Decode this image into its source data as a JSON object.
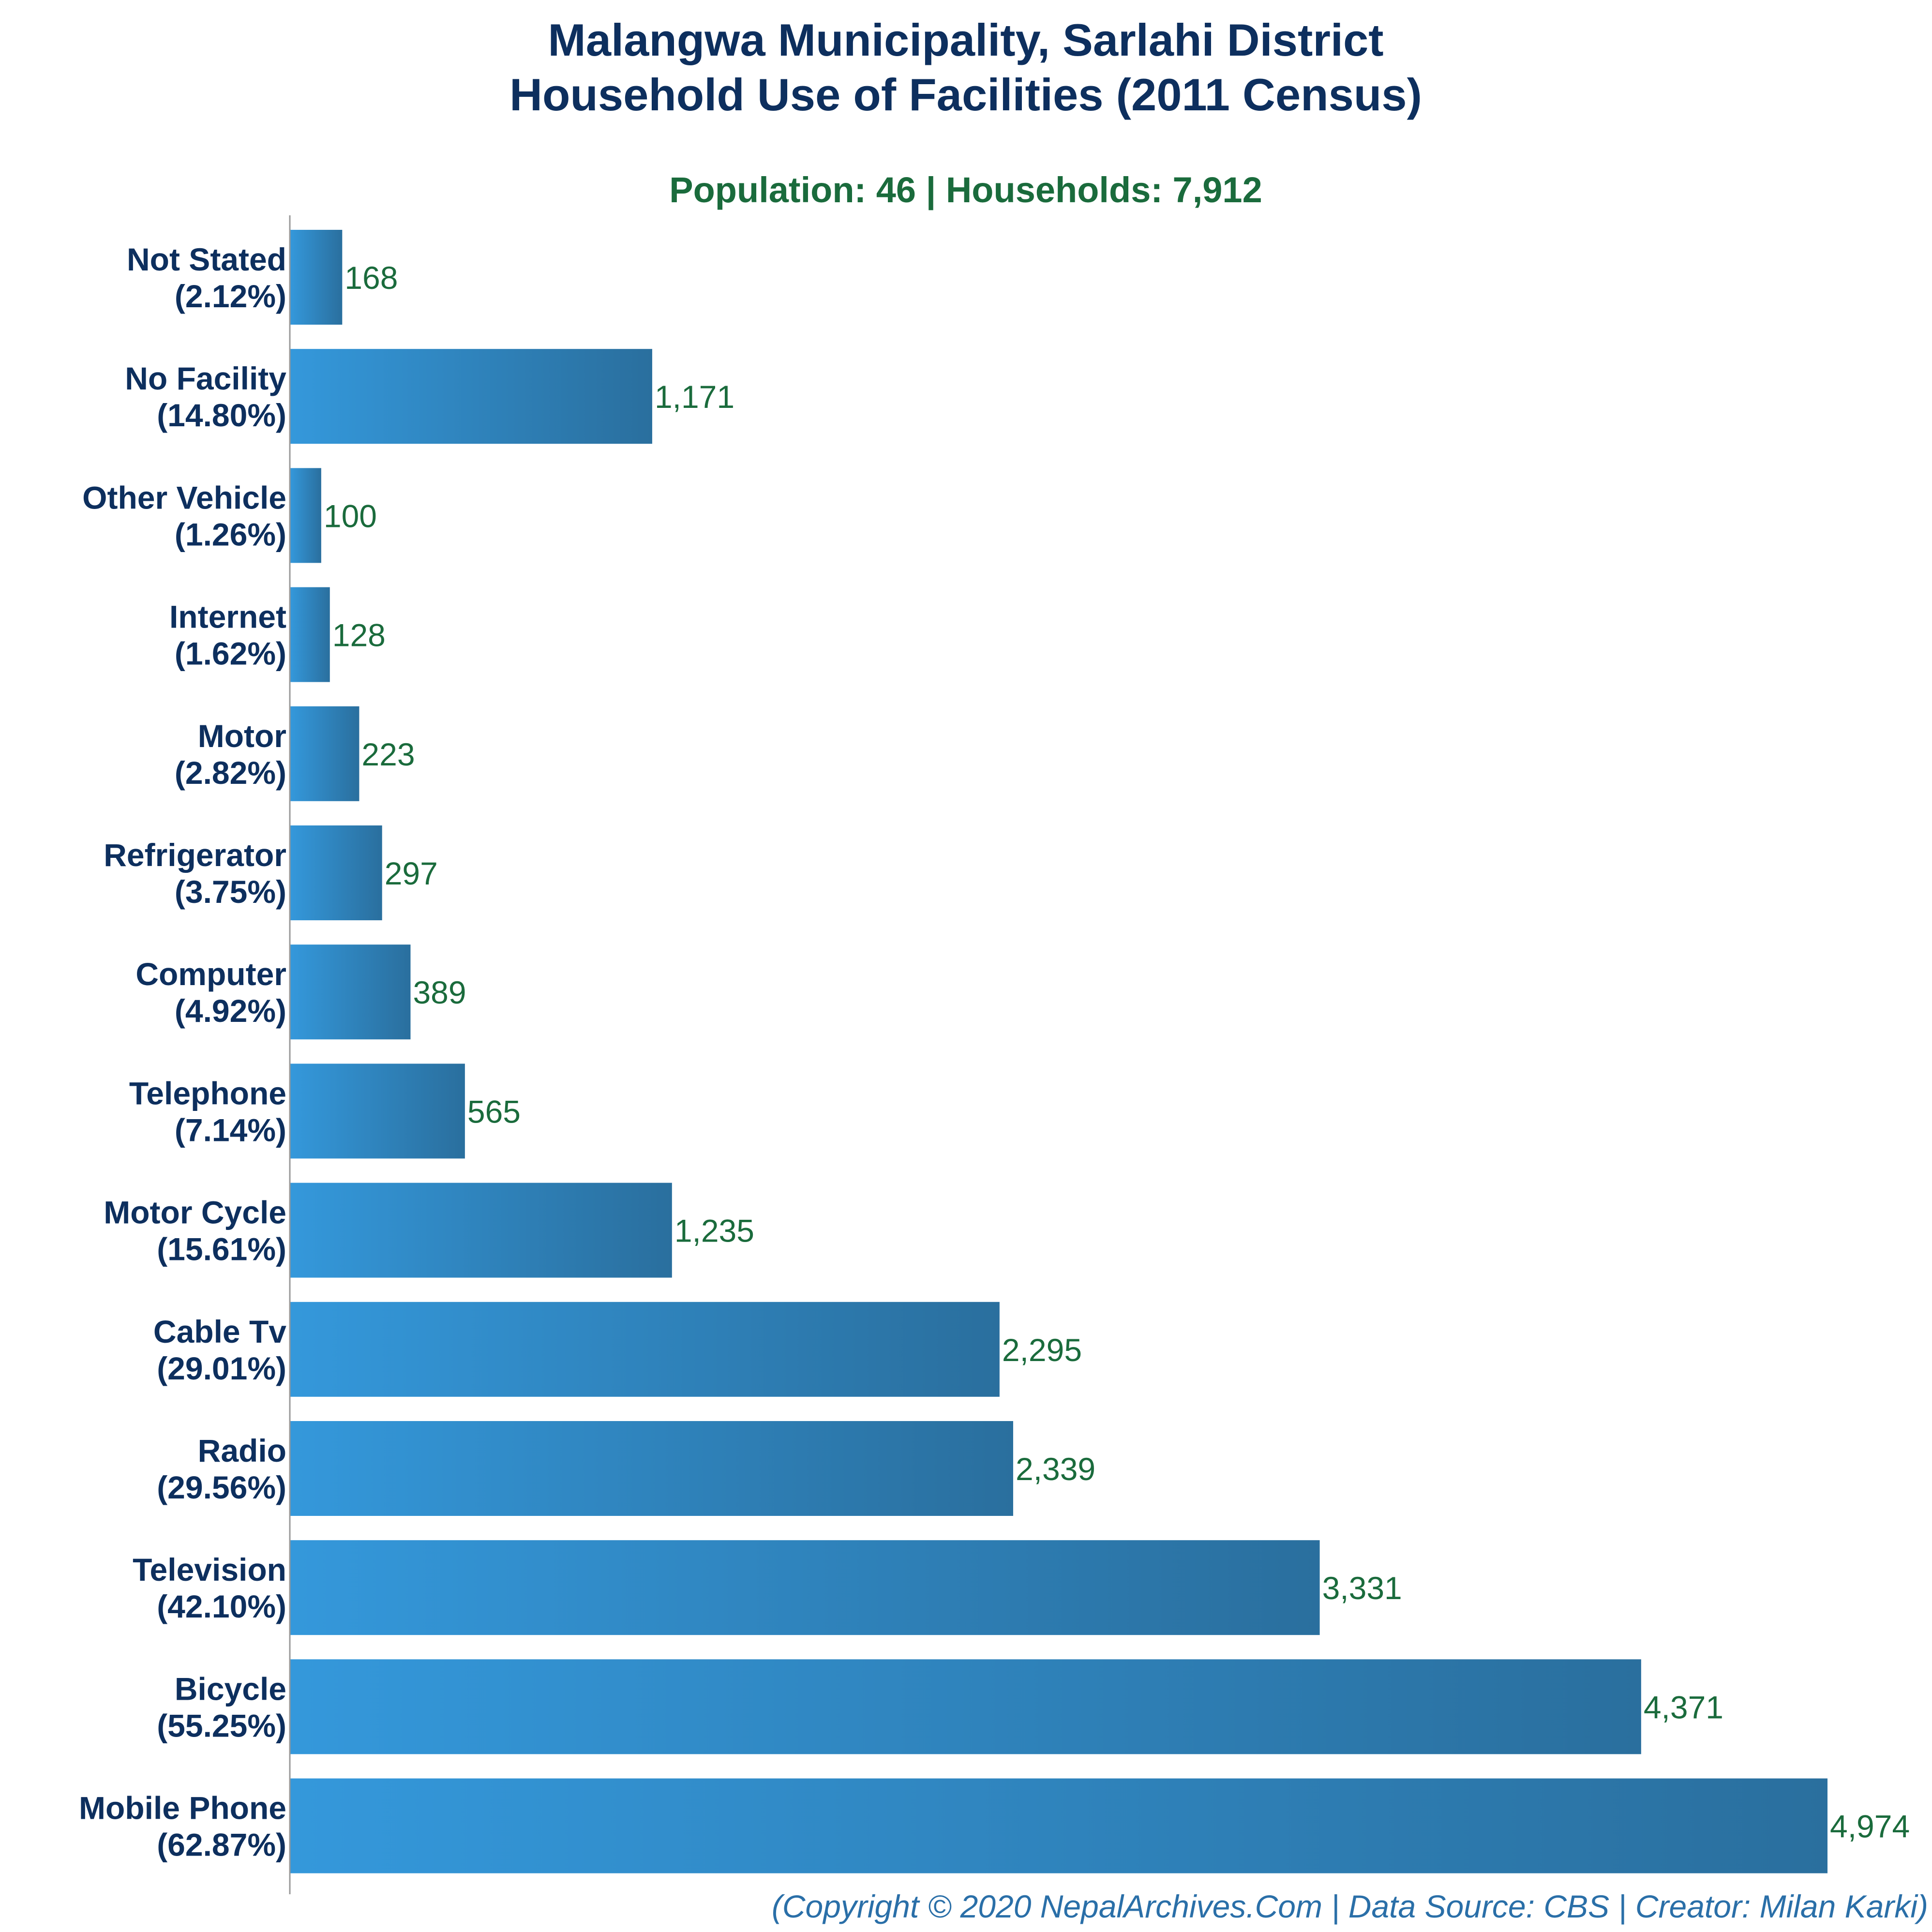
{
  "chart_data": {
    "type": "bar",
    "orientation": "horizontal",
    "title_lines": [
      "Malangwa Municipality, Sarlahi District",
      "Household Use of Facilities (2011 Census)"
    ],
    "subtitle": "Population: 46 | Households: 7,912",
    "categories": [
      "Not Stated",
      "No Facility",
      "Other Vehicle",
      "Internet",
      "Motor",
      "Refrigerator",
      "Computer",
      "Telephone",
      "Motor Cycle",
      "Cable Tv",
      "Radio",
      "Television",
      "Bicycle",
      "Mobile Phone"
    ],
    "percent_labels": [
      "(2.12%)",
      "(14.80%)",
      "(1.26%)",
      "(1.62%)",
      "(2.82%)",
      "(3.75%)",
      "(4.92%)",
      "(7.14%)",
      "(15.61%)",
      "(29.01%)",
      "(29.56%)",
      "(42.10%)",
      "(55.25%)",
      "(62.87%)"
    ],
    "values": [
      168,
      1171,
      100,
      128,
      223,
      297,
      389,
      565,
      1235,
      2295,
      2339,
      3331,
      4371,
      4974
    ],
    "value_labels": [
      "168",
      "1,171",
      "100",
      "128",
      "223",
      "297",
      "389",
      "565",
      "1,235",
      "2,295",
      "2,339",
      "3,331",
      "4,371",
      "4,974"
    ],
    "xlim": [
      0,
      4974
    ],
    "grid": false,
    "legend": "none",
    "footer": "(Copyright © 2020 NepalArchives.Com | Data Source: CBS | Creator: Milan Karki)",
    "colors": {
      "bar_light": "#3498db",
      "bar_dark": "#2a6f9e",
      "title": "#0d2f5e",
      "subtitle": "#1a6b3c",
      "value_label": "#1a6b3c",
      "category_label": "#0d2f5e",
      "footer": "#2a6fa8",
      "axis": "#999999"
    }
  }
}
